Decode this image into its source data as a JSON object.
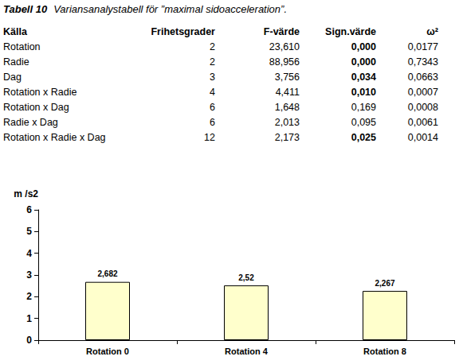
{
  "caption": {
    "label": "Tabell 10",
    "text": "Variansanalystabell för ”maximal sidoacceleration”."
  },
  "table": {
    "header": [
      "Källa",
      "Frihetsgrader",
      "F-värde",
      "Sign.värde",
      "ω²"
    ],
    "rows": [
      [
        "Rotation",
        "2",
        "23,610",
        {
          "text": "0,000",
          "bold": true
        },
        "0,0177"
      ],
      [
        "Radie",
        "2",
        "88,956",
        {
          "text": "0,000",
          "bold": true
        },
        "0,7343"
      ],
      [
        "Dag",
        "3",
        "3,756",
        {
          "text": "0,034",
          "bold": true
        },
        "0,0663"
      ],
      [
        "Rotation x Radie",
        "4",
        "4,411",
        {
          "text": "0,010",
          "bold": true
        },
        "0,0007"
      ],
      [
        "Rotation x Dag",
        "6",
        "1,648",
        {
          "text": "0,169",
          "bold": false
        },
        "0,0008"
      ],
      [
        "Radie x Dag",
        "6",
        "2,013",
        {
          "text": "0,095",
          "bold": false
        },
        "0,0061"
      ],
      [
        "Rotation x Radie x Dag",
        "12",
        "2,173",
        {
          "text": "0,025",
          "bold": true
        },
        "0,0014"
      ]
    ]
  },
  "chart_data": {
    "type": "bar",
    "y_label": "m /s2",
    "categories": [
      "Rotation 0",
      "Rotation 4",
      "Rotation 8"
    ],
    "values": [
      2.682,
      2.52,
      2.267
    ],
    "value_labels": [
      "2,682",
      "2,52",
      "2,267"
    ],
    "data_labels": true,
    "color": "#ffffcc",
    "ylim": [
      0,
      6
    ],
    "yticks": [
      0,
      1,
      2,
      3,
      4,
      5,
      6
    ],
    "grid": false
  }
}
